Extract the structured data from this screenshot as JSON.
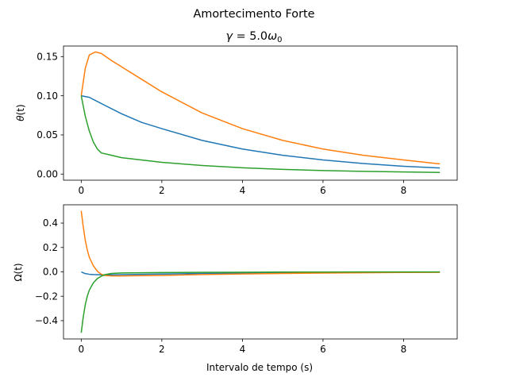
{
  "figure": {
    "suptitle": "Amortecimento Forte"
  },
  "chart_data": [
    {
      "type": "line",
      "title": "γ = 5.0ω0",
      "xlabel": "",
      "ylabel": "θ(t)",
      "xlim": [
        -0.44,
        9.33
      ],
      "ylim": [
        -0.0078,
        0.1635
      ],
      "xticks": [
        0,
        2,
        4,
        6,
        8
      ],
      "yticks": [
        0.0,
        0.05,
        0.1,
        0.15
      ],
      "ytick_labels": [
        "0.00",
        "0.05",
        "0.10",
        "0.15"
      ],
      "grid": false,
      "series": [
        {
          "color": "#1f77b4",
          "x": [
            0,
            0.2,
            0.5,
            1.0,
            1.5,
            2.0,
            3.0,
            4.0,
            5.0,
            6.0,
            7.0,
            8.0,
            8.9
          ],
          "values": [
            0.1,
            0.098,
            0.09,
            0.077,
            0.066,
            0.058,
            0.043,
            0.032,
            0.024,
            0.018,
            0.0135,
            0.01,
            0.0078
          ]
        },
        {
          "color": "#ff7f0e",
          "x": [
            0,
            0.1,
            0.2,
            0.35,
            0.5,
            0.75,
            1.0,
            1.5,
            2.0,
            3.0,
            4.0,
            5.0,
            6.0,
            7.0,
            8.0,
            8.9
          ],
          "values": [
            0.1,
            0.135,
            0.152,
            0.156,
            0.154,
            0.145,
            0.137,
            0.121,
            0.105,
            0.078,
            0.058,
            0.043,
            0.032,
            0.024,
            0.018,
            0.013
          ]
        },
        {
          "color": "#2ca02c",
          "x": [
            0,
            0.05,
            0.1,
            0.2,
            0.3,
            0.4,
            0.5,
            0.75,
            1.0,
            2.0,
            3.0,
            4.0,
            5.0,
            6.0,
            7.0,
            8.0,
            8.9
          ],
          "values": [
            0.1,
            0.087,
            0.074,
            0.055,
            0.041,
            0.032,
            0.027,
            0.024,
            0.021,
            0.015,
            0.011,
            0.008,
            0.006,
            0.0045,
            0.0035,
            0.0027,
            0.0021
          ]
        }
      ]
    },
    {
      "type": "line",
      "title": "",
      "xlabel": "Intervalo de tempo (s)",
      "ylabel": "Ω(t)",
      "xlim": [
        -0.44,
        9.33
      ],
      "ylim": [
        -0.55,
        0.55
      ],
      "xticks": [
        0,
        2,
        4,
        6,
        8
      ],
      "yticks": [
        -0.4,
        -0.2,
        0.0,
        0.2,
        0.4
      ],
      "ytick_labels": [
        "−0.4",
        "−0.2",
        "0.0",
        "0.2",
        "0.4"
      ],
      "grid": false,
      "series": [
        {
          "color": "#1f77b4",
          "x": [
            0,
            0.05,
            0.1,
            0.2,
            0.3,
            0.5,
            0.75,
            1.0,
            2.0,
            3.0,
            4.0,
            5.0,
            6.0,
            7.0,
            8.0,
            8.9
          ],
          "values": [
            0.0,
            -0.008,
            -0.014,
            -0.02,
            -0.022,
            -0.024,
            -0.024,
            -0.023,
            -0.018,
            -0.013,
            -0.01,
            -0.007,
            -0.005,
            -0.004,
            -0.003,
            -0.002
          ]
        },
        {
          "color": "#ff7f0e",
          "x": [
            0,
            0.05,
            0.1,
            0.15,
            0.2,
            0.3,
            0.4,
            0.5,
            0.6,
            0.75,
            1.0,
            2.0,
            3.0,
            4.0,
            5.0,
            6.0,
            7.0,
            8.0,
            8.9
          ],
          "values": [
            0.5,
            0.37,
            0.26,
            0.18,
            0.12,
            0.05,
            0.005,
            -0.02,
            -0.03,
            -0.033,
            -0.033,
            -0.029,
            -0.022,
            -0.017,
            -0.013,
            -0.01,
            -0.007,
            -0.005,
            -0.004
          ]
        },
        {
          "color": "#2ca02c",
          "x": [
            0,
            0.05,
            0.1,
            0.15,
            0.2,
            0.3,
            0.4,
            0.5,
            0.6,
            0.75,
            1.0,
            2.0,
            3.0,
            4.0,
            5.0,
            6.0,
            7.0,
            8.0,
            8.9
          ],
          "values": [
            -0.5,
            -0.37,
            -0.27,
            -0.2,
            -0.15,
            -0.09,
            -0.055,
            -0.035,
            -0.022,
            -0.013,
            -0.009,
            -0.006,
            -0.004,
            -0.003,
            -0.002,
            -0.0015,
            -0.0012,
            -0.001,
            -0.0008
          ]
        }
      ]
    }
  ]
}
